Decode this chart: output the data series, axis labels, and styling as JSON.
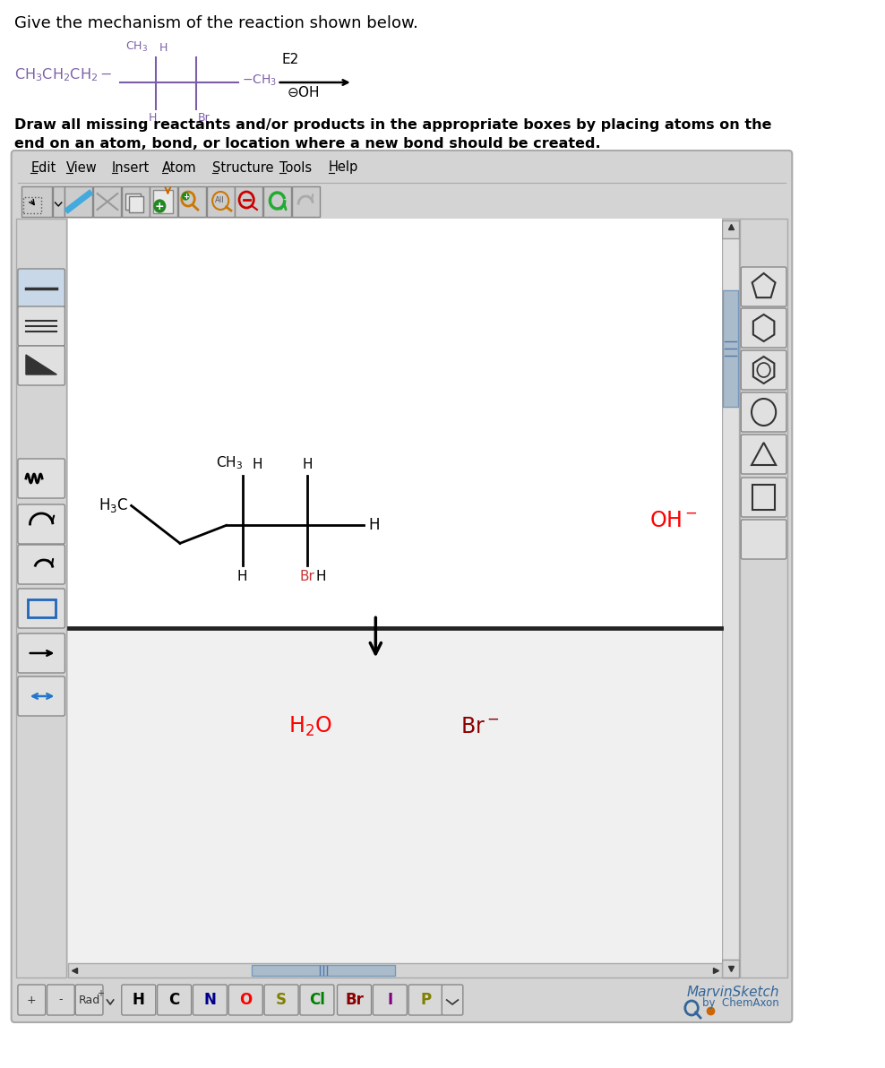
{
  "title_text": "Give the mechanism of the reaction shown below.",
  "bg_color": "#ffffff",
  "panel_bg": "#d4d4d4",
  "canvas_bg": "#ffffff",
  "menu_items": [
    "Edit",
    "View",
    "Insert",
    "Atom",
    "Structure",
    "Tools",
    "Help"
  ],
  "atom_buttons": [
    "H",
    "C",
    "N",
    "O",
    "S",
    "Cl",
    "Br",
    "I",
    "P"
  ],
  "atom_colors": [
    "#000000",
    "#000000",
    "#00008b",
    "#ff0000",
    "#808000",
    "#008000",
    "#8b0000",
    "#800080",
    "#808000"
  ],
  "h2o_color": "#ff0000",
  "br_minus_color": "#8b0000",
  "oh_minus_color": "#ff0000"
}
